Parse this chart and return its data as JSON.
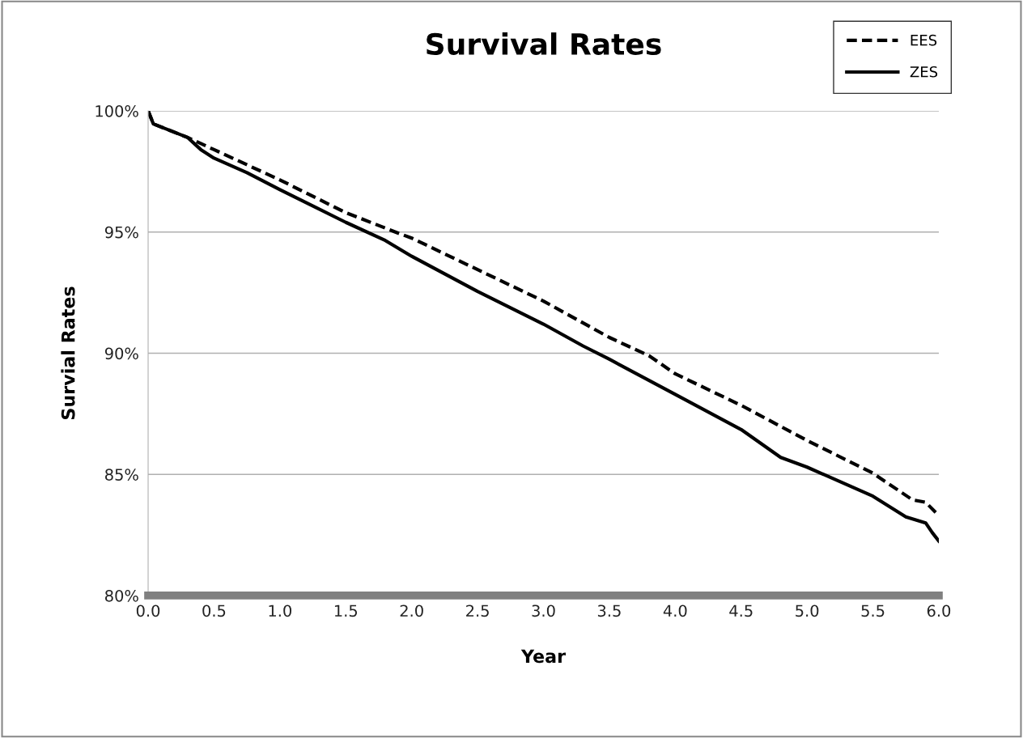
{
  "chart_data": {
    "type": "line",
    "title": "Survival Rates",
    "xlabel": "Year",
    "ylabel": "Survial Rates",
    "series": [
      {
        "name": "EES",
        "color": "#000000",
        "line_style": "dashed",
        "x": [
          0,
          0.04,
          0.3,
          0.5,
          1.0,
          1.5,
          1.9,
          2.0,
          2.5,
          3.0,
          3.5,
          3.8,
          4.0,
          4.5,
          5.0,
          5.5,
          5.8,
          5.9,
          6.0
        ],
        "values": [
          100,
          99.46,
          98.9,
          98.4,
          97.15,
          95.8,
          94.95,
          94.75,
          93.45,
          92.15,
          90.65,
          89.9,
          89.15,
          87.85,
          86.4,
          85.05,
          83.95,
          83.85,
          83.3
        ]
      },
      {
        "name": "ZES",
        "color": "#000000",
        "line_style": "solid",
        "x": [
          0,
          0.04,
          0.3,
          0.4,
          0.5,
          0.75,
          1.0,
          1.5,
          1.8,
          2.0,
          2.5,
          3.0,
          3.3,
          3.5,
          4.0,
          4.5,
          4.8,
          5.0,
          5.5,
          5.75,
          5.9,
          5.95,
          6.0
        ],
        "values": [
          100,
          99.46,
          98.9,
          98.4,
          98.05,
          97.45,
          96.75,
          95.4,
          94.65,
          94.0,
          92.55,
          91.2,
          90.3,
          89.75,
          88.3,
          86.85,
          85.7,
          85.3,
          84.1,
          83.25,
          83.0,
          82.6,
          82.25
        ]
      }
    ],
    "xlim": [
      0,
      6
    ],
    "xticks": [
      {
        "value": 0,
        "label": "0.0"
      },
      {
        "value": 0.5,
        "label": "0.5"
      },
      {
        "value": 1,
        "label": "1.0"
      },
      {
        "value": 1.5,
        "label": "1.5"
      },
      {
        "value": 2,
        "label": "2.0"
      },
      {
        "value": 2.5,
        "label": "2.5"
      },
      {
        "value": 3,
        "label": "3.0"
      },
      {
        "value": 3.5,
        "label": "3.5"
      },
      {
        "value": 4,
        "label": "4.0"
      },
      {
        "value": 4.5,
        "label": "4.5"
      },
      {
        "value": 5,
        "label": "5.0"
      },
      {
        "value": 5.5,
        "label": "5.5"
      },
      {
        "value": 6,
        "label": "6.0"
      }
    ],
    "ylim": [
      80,
      100
    ],
    "yticks": [
      {
        "value": 80,
        "label": "80%"
      },
      {
        "value": 85,
        "label": "85%"
      },
      {
        "value": 90,
        "label": "90%"
      },
      {
        "value": 95,
        "label": "95%"
      },
      {
        "value": 100,
        "label": "100%"
      }
    ],
    "grid": "y",
    "legend": "top right",
    "marker": "none"
  }
}
